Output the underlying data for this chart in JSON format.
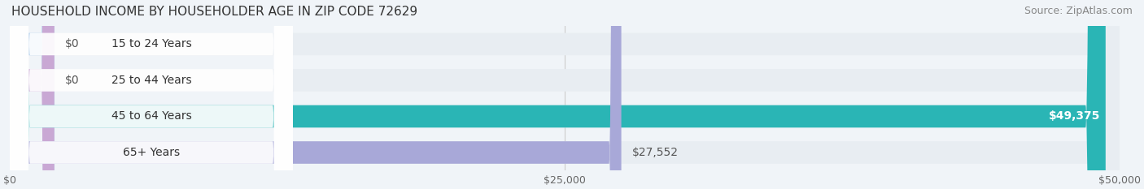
{
  "title": "HOUSEHOLD INCOME BY HOUSEHOLDER AGE IN ZIP CODE 72629",
  "source": "Source: ZipAtlas.com",
  "categories": [
    "15 to 24 Years",
    "25 to 44 Years",
    "45 to 64 Years",
    "65+ Years"
  ],
  "values": [
    0,
    0,
    49375,
    27552
  ],
  "bar_colors": [
    "#a8c8e8",
    "#c9a8d4",
    "#2ab5b5",
    "#a8a8d8"
  ],
  "label_colors": [
    "#555555",
    "#555555",
    "#ffffff",
    "#555555"
  ],
  "value_labels": [
    "$0",
    "$0",
    "$49,375",
    "$27,552"
  ],
  "xlim": [
    0,
    50000
  ],
  "xticks": [
    0,
    25000,
    50000
  ],
  "xticklabels": [
    "$0",
    "$25,000",
    "$50,000"
  ],
  "background_color": "#f0f4f8",
  "bar_bg_color": "#e8edf2",
  "title_fontsize": 11,
  "source_fontsize": 9,
  "label_fontsize": 10,
  "value_fontsize": 10,
  "figsize": [
    14.06,
    2.33
  ],
  "dpi": 100
}
